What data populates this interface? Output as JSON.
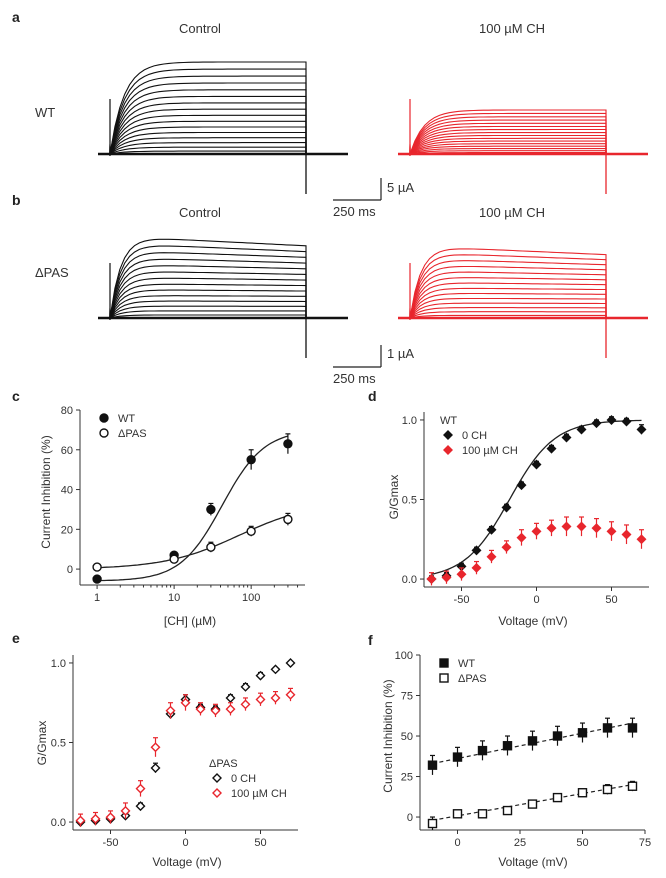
{
  "panels": {
    "a": {
      "label": "a",
      "titles": [
        "Control",
        "100 µM CH"
      ],
      "row_label": "WT",
      "scalebar": {
        "y": "5 µA",
        "x": "250 ms"
      }
    },
    "b": {
      "label": "b",
      "titles": [
        "Control",
        "100 µM CH"
      ],
      "row_label": "ΔPAS",
      "scalebar": {
        "y": "1 µA",
        "x": "250 ms"
      }
    }
  },
  "colors": {
    "black": "#111111",
    "red": "#e8262d",
    "gray": "#333333"
  },
  "chart_data": [
    {
      "id": "c",
      "panel_label": "c",
      "type": "scatter",
      "xlabel": "[CH] (µM)",
      "ylabel": "Current Inhibition (%)",
      "xscale": "log",
      "xlim": [
        0.6,
        500
      ],
      "ylim": [
        -8,
        80
      ],
      "xticks": [
        1,
        10,
        100
      ],
      "yticks": [
        0,
        20,
        40,
        60,
        80
      ],
      "legend_position": "top-left",
      "series": [
        {
          "name": "WT",
          "marker": "filled-circle",
          "color": "#111111",
          "x": [
            1,
            10,
            30,
            100,
            300
          ],
          "y": [
            -5,
            7,
            30,
            55,
            63
          ],
          "err": [
            1.5,
            1.5,
            3,
            5,
            5
          ],
          "fit": {
            "type": "hill",
            "bottom": -6,
            "top": 70,
            "ec50": 42,
            "n": 1.6
          }
        },
        {
          "name": "ΔPAS",
          "marker": "open-circle",
          "color": "#111111",
          "x": [
            1,
            10,
            30,
            100,
            300
          ],
          "y": [
            1,
            5,
            11,
            19,
            25
          ],
          "err": [
            1,
            1.5,
            2.5,
            2.5,
            3
          ],
          "fit": {
            "type": "hill",
            "bottom": 0,
            "top": 34,
            "ec50": 70,
            "n": 0.9
          }
        }
      ]
    },
    {
      "id": "d",
      "panel_label": "d",
      "type": "scatter",
      "xlabel": "Voltage (mV)",
      "ylabel": "G/Gmax",
      "xlim": [
        -75,
        75
      ],
      "ylim": [
        -0.05,
        1.05
      ],
      "xticks": [
        -50,
        0,
        50
      ],
      "yticks": [
        0.0,
        0.5,
        1.0
      ],
      "legend_title": "WT",
      "legend_position": "top-left",
      "series": [
        {
          "name": "0 CH",
          "marker": "filled-diamond",
          "color": "#111111",
          "x": [
            -70,
            -60,
            -50,
            -40,
            -30,
            -20,
            -10,
            0,
            10,
            20,
            30,
            40,
            50,
            60,
            70
          ],
          "y": [
            0.0,
            0.02,
            0.08,
            0.18,
            0.31,
            0.45,
            0.59,
            0.72,
            0.82,
            0.89,
            0.94,
            0.98,
            1.0,
            0.99,
            0.94
          ],
          "err": [
            0.02,
            0.02,
            0.02,
            0.02,
            0.02,
            0.02,
            0.02,
            0.02,
            0.02,
            0.02,
            0.02,
            0.02,
            0.02,
            0.02,
            0.03
          ],
          "fit": {
            "type": "boltzmann",
            "vhalf": -18,
            "k": 15,
            "max": 1.0
          }
        },
        {
          "name": "100 µM CH",
          "marker": "filled-diamond",
          "color": "#e8262d",
          "x": [
            -70,
            -60,
            -50,
            -40,
            -30,
            -20,
            -10,
            0,
            10,
            20,
            30,
            40,
            50,
            60,
            70
          ],
          "y": [
            0.0,
            0.01,
            0.03,
            0.07,
            0.14,
            0.2,
            0.26,
            0.3,
            0.32,
            0.33,
            0.33,
            0.32,
            0.3,
            0.28,
            0.25
          ],
          "err": [
            0.04,
            0.04,
            0.04,
            0.04,
            0.04,
            0.04,
            0.05,
            0.05,
            0.05,
            0.06,
            0.06,
            0.06,
            0.06,
            0.06,
            0.06
          ]
        }
      ]
    },
    {
      "id": "e",
      "panel_label": "e",
      "type": "scatter",
      "xlabel": "Voltage (mV)",
      "ylabel": "G/Gmax",
      "xlim": [
        -75,
        75
      ],
      "ylim": [
        -0.05,
        1.05
      ],
      "xticks": [
        -50,
        0,
        50
      ],
      "yticks": [
        0.0,
        0.5,
        1.0
      ],
      "legend_title": "ΔPAS",
      "legend_position": "bottom-right",
      "series": [
        {
          "name": "0 CH",
          "marker": "open-diamond",
          "color": "#111111",
          "x": [
            -70,
            -60,
            -50,
            -40,
            -30,
            -20,
            -10,
            0,
            10,
            20,
            30,
            40,
            50,
            60,
            70
          ],
          "y": [
            0.0,
            0.01,
            0.02,
            0.04,
            0.1,
            0.34,
            0.68,
            0.77,
            0.72,
            0.71,
            0.78,
            0.85,
            0.92,
            0.96,
            1.0
          ],
          "err": [
            0.01,
            0.01,
            0.01,
            0.02,
            0.02,
            0.03,
            0.03,
            0.03,
            0.02,
            0.02,
            0.02,
            0.02,
            0.02,
            0.01,
            0.01
          ]
        },
        {
          "name": "100 µM CH",
          "marker": "open-diamond",
          "color": "#e8262d",
          "x": [
            -70,
            -60,
            -50,
            -40,
            -30,
            -20,
            -10,
            0,
            10,
            20,
            30,
            40,
            50,
            60,
            70
          ],
          "y": [
            0.01,
            0.02,
            0.03,
            0.07,
            0.21,
            0.47,
            0.7,
            0.75,
            0.71,
            0.7,
            0.71,
            0.74,
            0.77,
            0.78,
            0.8
          ],
          "err": [
            0.04,
            0.04,
            0.04,
            0.05,
            0.05,
            0.06,
            0.05,
            0.05,
            0.04,
            0.04,
            0.04,
            0.04,
            0.04,
            0.04,
            0.04
          ]
        }
      ]
    },
    {
      "id": "f",
      "panel_label": "f",
      "type": "scatter",
      "xlabel": "Voltage (mV)",
      "ylabel": "Current Inhibition (%)",
      "xlim": [
        -15,
        75
      ],
      "ylim": [
        -8,
        100
      ],
      "xticks": [
        0,
        25,
        50,
        75
      ],
      "yticks": [
        0,
        25,
        50,
        75,
        100
      ],
      "legend_position": "top-left",
      "series": [
        {
          "name": "WT",
          "marker": "filled-square",
          "color": "#111111",
          "x": [
            -10,
            0,
            10,
            20,
            30,
            40,
            50,
            60,
            70
          ],
          "y": [
            32,
            37,
            41,
            44,
            47,
            50,
            52,
            55,
            55
          ],
          "err": [
            6,
            6,
            6,
            6,
            6,
            6,
            6,
            6,
            6
          ],
          "fit": {
            "type": "linear",
            "x0": -10,
            "y0": 33,
            "x1": 70,
            "y1": 58
          }
        },
        {
          "name": "ΔPAS",
          "marker": "open-square",
          "color": "#111111",
          "x": [
            -10,
            0,
            10,
            20,
            30,
            40,
            50,
            60,
            70
          ],
          "y": [
            -4,
            2,
            2,
            4,
            8,
            12,
            15,
            17,
            19
          ],
          "err": [
            4,
            2,
            2,
            2,
            2,
            2,
            2,
            3,
            3
          ],
          "fit": {
            "type": "linear",
            "x0": -10,
            "y0": -2,
            "x1": 70,
            "y1": 20
          }
        }
      ]
    }
  ]
}
